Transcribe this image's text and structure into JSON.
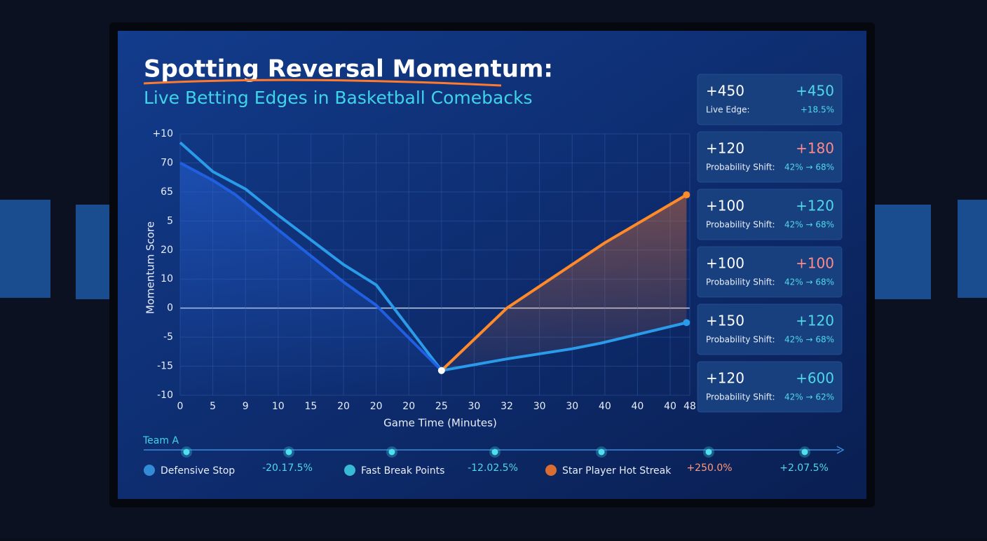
{
  "header": {
    "title": "Spotting Reversal Momentum:",
    "subtitle": "Live Betting Edges in Basketball Comebacks"
  },
  "chart_data": {
    "type": "line",
    "y_label": "Momentum Score",
    "x_label": "Game Time (Minutes)",
    "ylim": [
      -3,
      6
    ],
    "yticks": [
      {
        "value": -3,
        "label": "-10"
      },
      {
        "value": -2,
        "label": "-15"
      },
      {
        "value": -1,
        "label": "-5"
      },
      0,
      {
        "value": 1,
        "label": "10"
      },
      {
        "value": 2,
        "label": "20"
      },
      {
        "value": 3,
        "label": "5"
      },
      {
        "value": 4,
        "label": "65"
      },
      {
        "value": 5,
        "label": "70"
      },
      {
        "value": 6,
        "label": "+10"
      }
    ],
    "xlim": [
      0,
      15.6
    ],
    "xticks": [
      0,
      {
        "value": 1,
        "label": "5"
      },
      {
        "value": 2,
        "label": "9"
      },
      {
        "value": 3,
        "label": "10"
      },
      {
        "value": 4,
        "label": "15"
      },
      {
        "value": 5,
        "label": "20"
      },
      {
        "value": 6,
        "label": "20"
      },
      {
        "value": 7,
        "label": "20"
      },
      {
        "value": 8,
        "label": "25"
      },
      {
        "value": 9,
        "label": "30"
      },
      {
        "value": 10,
        "label": "32"
      },
      {
        "value": 11,
        "label": "30"
      },
      {
        "value": 12,
        "label": "30"
      },
      {
        "value": 13,
        "label": "40"
      },
      {
        "value": 14,
        "label": "40"
      },
      {
        "value": 15,
        "label": "40"
      },
      {
        "value": 15.6,
        "label": "48"
      }
    ],
    "grid": true,
    "series": [
      {
        "color": "#2a9be8",
        "x": [
          0,
          1,
          2,
          3,
          5,
          6,
          8,
          10,
          12,
          12.9,
          15.5
        ],
        "values": [
          5.7,
          4.7,
          4.1,
          3.2,
          1.5,
          0.8,
          -2.15,
          -1.75,
          -1.4,
          -1.2,
          -0.5
        ]
      },
      {
        "color": "#1f5fe0",
        "x": [
          0,
          1,
          1.7,
          3,
          5,
          6,
          8
        ],
        "values": [
          5,
          4.4,
          3.9,
          2.7,
          0.9,
          0.1,
          -2.15
        ]
      },
      {
        "color": "#ff8a2a",
        "x": [
          8,
          10,
          13,
          15.5
        ],
        "values": [
          -2.15,
          0,
          2.25,
          3.9
        ]
      }
    ]
  },
  "cards": [
    {
      "left": "+450",
      "label": "Live Edge:",
      "right": "+450",
      "sub": "+18.5%",
      "color": "#4fd8e8"
    },
    {
      "left": "+120",
      "label": "Probability Shift:",
      "right": "+180",
      "sub": "42% → 68%",
      "color": "#ff8a8a"
    },
    {
      "left": "+100",
      "label": "Probability Shift:",
      "right": "+120",
      "sub": "42% → 68%",
      "color": "#4fd8e8"
    },
    {
      "left": "+100",
      "label": "Probability Shift:",
      "right": "+100",
      "sub": "42% → 68%",
      "color": "#ff8a8a"
    },
    {
      "left": "+150",
      "label": "Probability Shift:",
      "right": "+120",
      "sub": "42% → 68%",
      "color": "#4fd8e8"
    },
    {
      "left": "+120",
      "label": "Probability Shift:",
      "right": "+600",
      "sub": "42% → 62%",
      "color": "#4fd8e8"
    }
  ],
  "timeline": {
    "team": "Team A",
    "events": [
      "Defensive Stop",
      "Fast Break Points",
      "Star Player Hot Streak"
    ],
    "changes": [
      {
        "text": "-20.17.5%",
        "color": "#4fd8e8"
      },
      {
        "text": "-12.02.5%",
        "color": "#4fd8e8"
      },
      {
        "text": "+250.0%",
        "color": "#ff9a7a"
      },
      {
        "text": "+2.07.5%",
        "color": "#4fd8e8"
      }
    ]
  }
}
